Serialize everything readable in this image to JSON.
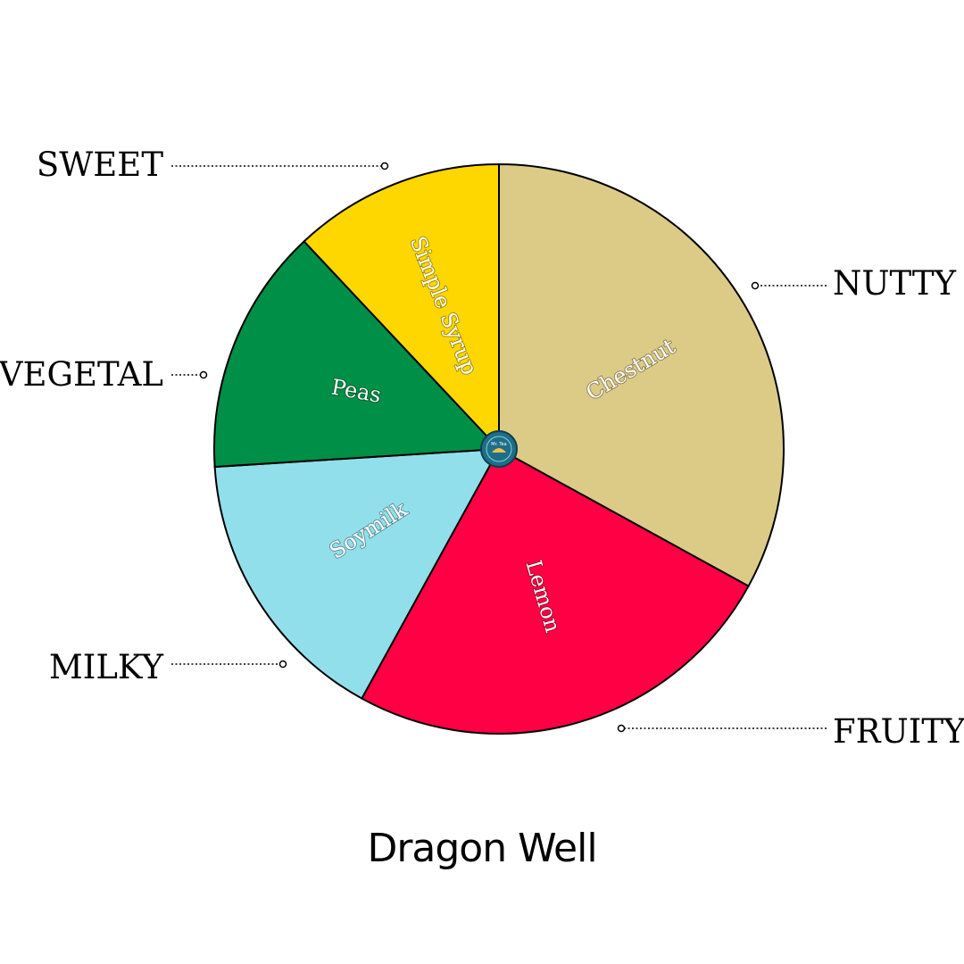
{
  "chart_data": {
    "type": "pie",
    "title": "Dragon Well",
    "start": "top",
    "direction": "clockwise",
    "series": [
      {
        "slices": [
          {
            "label": "Chestnut",
            "category": "NUTTY",
            "value": 33,
            "color": "#DCCB86"
          },
          {
            "label": "Lemon",
            "category": "FRUITY",
            "value": 25,
            "color": "#FF0044"
          },
          {
            "label": "Soymilk",
            "category": "MILKY",
            "value": 16,
            "color": "#92DFEC"
          },
          {
            "label": "Peas",
            "category": "VEGETAL",
            "value": 14,
            "color": "#008F47"
          },
          {
            "label": "Simple Syrup",
            "category": "SWEET",
            "value": 12,
            "color": "#FFD700"
          }
        ]
      }
    ]
  },
  "logo": {
    "name": "logo-badge-icon",
    "text": "Mr. Tea",
    "color": "#1F6E87"
  }
}
